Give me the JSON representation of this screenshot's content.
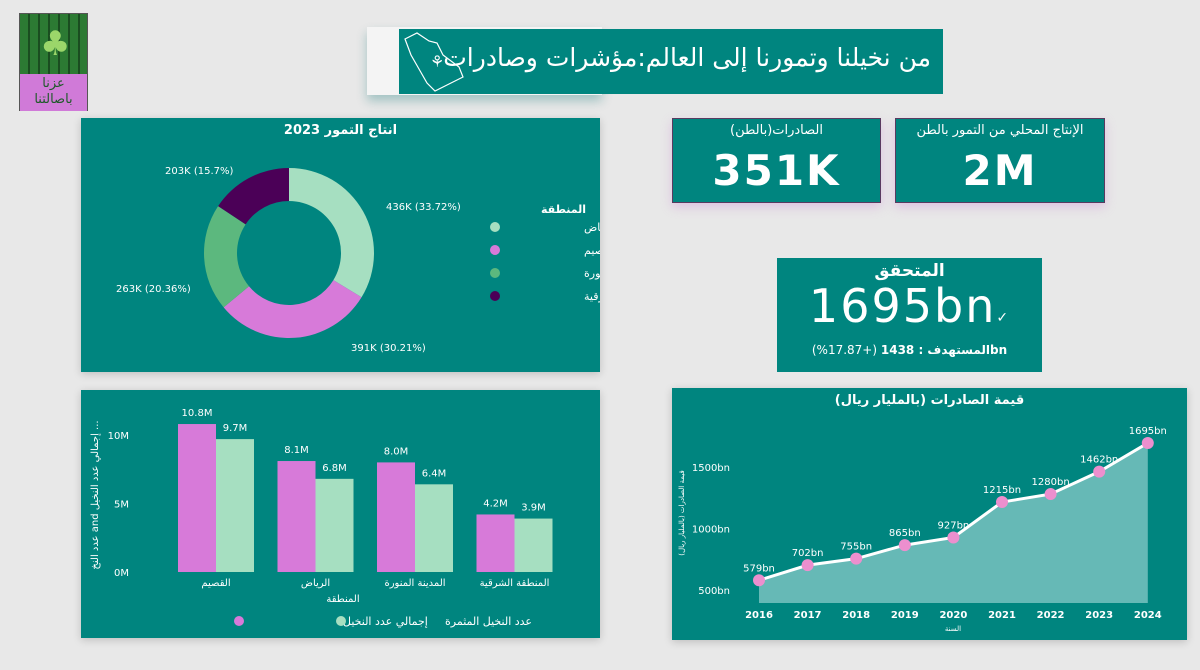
{
  "logo": {
    "text_line1": "عزنا",
    "text_line2": "باصالتنا"
  },
  "header": {
    "title": "من نخيلنا وتمورنا إلى العالم:مؤشرات وصادرات"
  },
  "kpis": {
    "exports_label": "الصادرات(بالطن)",
    "exports_value": "351K",
    "production_label": "الإنتاج المحلي من التمور بالطن",
    "production_value": "2M"
  },
  "target_card": {
    "label": "المتحقق",
    "value": "1695bn",
    "check": "✓",
    "change": "(+17.87%)",
    "target_text": "bnالمستهدف : 1438"
  },
  "colors": {
    "teal": "#00857f",
    "riyadh": "#a6dfc1",
    "qassim": "#d77ad9",
    "madina": "#5cb87e",
    "eastern": "#4b0057",
    "point": "#ec8fce"
  },
  "chart_data": [
    {
      "type": "pie",
      "title": "انتاج التمور 2023",
      "legend_title": "المنطقة",
      "legend_position": "right",
      "categories": [
        "الرياض",
        "القصيم",
        "المدينة المنورة",
        "المنطقة الشرقية"
      ],
      "values": [
        436,
        391,
        263,
        203
      ],
      "labels": [
        "436K (33.72%)",
        "391K (30.21%)",
        "263K (20.36%)",
        "203K (15.7%)"
      ],
      "percents": [
        33.72,
        30.21,
        20.36,
        15.7
      ]
    },
    {
      "type": "bar",
      "title": "",
      "xlabel": "المنطقة",
      "ylabel": "عدد النخ and إجمالي عدد النخيل ...",
      "categories": [
        "القصيم",
        "الرياض",
        "المدينة المنورة",
        "المنطقة الشرقية"
      ],
      "yticks": [
        "0M",
        "5M",
        "10M"
      ],
      "ylim": [
        0,
        12
      ],
      "series": [
        {
          "name": "إجمالي عدد النخيل",
          "values": [
            10.8,
            8.1,
            8.0,
            4.2
          ],
          "labels": [
            "10.8M",
            "8.1M",
            "8.0M",
            "4.2M"
          ]
        },
        {
          "name": "عدد النخيل المثمرة",
          "values": [
            9.7,
            6.8,
            6.4,
            3.9
          ],
          "labels": [
            "9.7M",
            "6.8M",
            "6.4M",
            "3.9M"
          ]
        }
      ],
      "legend_position": "bottom"
    },
    {
      "type": "area",
      "title": "قيمة الصادرات (بالمليار ريال)",
      "xlabel": "السنة",
      "ylabel": "قيمة الصادرات (بالمليار ريال)",
      "x": [
        "2016",
        "2017",
        "2018",
        "2019",
        "2020",
        "2021",
        "2022",
        "2023",
        "2024"
      ],
      "values": [
        579,
        702,
        755,
        865,
        927,
        1215,
        1280,
        1462,
        1695
      ],
      "labels": [
        "579bn",
        "702bn",
        "755bn",
        "865bn",
        "927bn",
        "1215bn",
        "1280bn",
        "1462bn",
        "1695bn"
      ],
      "yticks": [
        "500bn",
        "1000bn",
        "1500bn"
      ],
      "ylim": [
        400,
        1750
      ]
    }
  ]
}
